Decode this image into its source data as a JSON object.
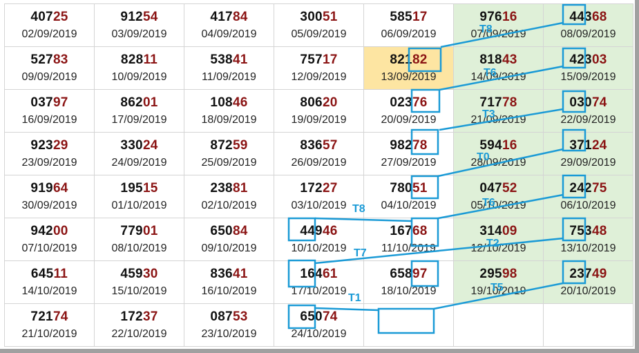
{
  "colors": {
    "accent": "#1a9ad6",
    "highlight_cell": "#fde5a2",
    "weekend_column": "#dff0d8",
    "tail_digits": "#8b1414"
  },
  "grid": {
    "rows": [
      [
        {
          "head": "407",
          "tail": "25",
          "date": "02/09/2019"
        },
        {
          "head": "912",
          "tail": "54",
          "date": "03/09/2019"
        },
        {
          "head": "417",
          "tail": "84",
          "date": "04/09/2019"
        },
        {
          "head": "300",
          "tail": "51",
          "date": "05/09/2019"
        },
        {
          "head": "585",
          "tail": "17",
          "date": "06/09/2019"
        },
        {
          "head": "976",
          "tail": "16",
          "date": "07/09/2019"
        },
        {
          "head": "443",
          "tail": "68",
          "date": "08/09/2019"
        }
      ],
      [
        {
          "head": "527",
          "tail": "83",
          "date": "09/09/2019"
        },
        {
          "head": "828",
          "tail": "11",
          "date": "10/09/2019"
        },
        {
          "head": "538",
          "tail": "41",
          "date": "11/09/2019"
        },
        {
          "head": "757",
          "tail": "17",
          "date": "12/09/2019"
        },
        {
          "head": "821",
          "tail": "82",
          "date": "13/09/2019"
        },
        {
          "head": "818",
          "tail": "43",
          "date": "14/09/2019"
        },
        {
          "head": "423",
          "tail": "03",
          "date": "15/09/2019"
        }
      ],
      [
        {
          "head": "037",
          "tail": "97",
          "date": "16/09/2019"
        },
        {
          "head": "862",
          "tail": "01",
          "date": "17/09/2019"
        },
        {
          "head": "108",
          "tail": "46",
          "date": "18/09/2019"
        },
        {
          "head": "806",
          "tail": "20",
          "date": "19/09/2019"
        },
        {
          "head": "023",
          "tail": "76",
          "date": "20/09/2019"
        },
        {
          "head": "717",
          "tail": "78",
          "date": "21/09/2019"
        },
        {
          "head": "030",
          "tail": "74",
          "date": "22/09/2019"
        }
      ],
      [
        {
          "head": "923",
          "tail": "29",
          "date": "23/09/2019"
        },
        {
          "head": "330",
          "tail": "24",
          "date": "24/09/2019"
        },
        {
          "head": "872",
          "tail": "59",
          "date": "25/09/2019"
        },
        {
          "head": "836",
          "tail": "57",
          "date": "26/09/2019"
        },
        {
          "head": "982",
          "tail": "78",
          "date": "27/09/2019"
        },
        {
          "head": "594",
          "tail": "16",
          "date": "28/09/2019"
        },
        {
          "head": "371",
          "tail": "24",
          "date": "29/09/2019"
        }
      ],
      [
        {
          "head": "919",
          "tail": "64",
          "date": "30/09/2019"
        },
        {
          "head": "195",
          "tail": "15",
          "date": "01/10/2019"
        },
        {
          "head": "238",
          "tail": "81",
          "date": "02/10/2019"
        },
        {
          "head": "172",
          "tail": "27",
          "date": "03/10/2019"
        },
        {
          "head": "780",
          "tail": "51",
          "date": "04/10/2019"
        },
        {
          "head": "047",
          "tail": "52",
          "date": "05/10/2019"
        },
        {
          "head": "242",
          "tail": "75",
          "date": "06/10/2019"
        }
      ],
      [
        {
          "head": "942",
          "tail": "00",
          "date": "07/10/2019"
        },
        {
          "head": "779",
          "tail": "01",
          "date": "08/10/2019"
        },
        {
          "head": "650",
          "tail": "84",
          "date": "09/10/2019"
        },
        {
          "head": "449",
          "tail": "46",
          "date": "10/10/2019"
        },
        {
          "head": "167",
          "tail": "68",
          "date": "11/10/2019"
        },
        {
          "head": "314",
          "tail": "09",
          "date": "12/10/2019"
        },
        {
          "head": "753",
          "tail": "48",
          "date": "13/10/2019"
        }
      ],
      [
        {
          "head": "645",
          "tail": "11",
          "date": "14/10/2019"
        },
        {
          "head": "459",
          "tail": "30",
          "date": "15/10/2019"
        },
        {
          "head": "836",
          "tail": "41",
          "date": "16/10/2019"
        },
        {
          "head": "164",
          "tail": "61",
          "date": "17/10/2019"
        },
        {
          "head": "658",
          "tail": "97",
          "date": "18/10/2019"
        },
        {
          "head": "295",
          "tail": "98",
          "date": "19/10/2019"
        },
        {
          "head": "237",
          "tail": "49",
          "date": "20/10/2019"
        }
      ],
      [
        {
          "head": "721",
          "tail": "74",
          "date": "21/10/2019"
        },
        {
          "head": "172",
          "tail": "37",
          "date": "22/10/2019"
        },
        {
          "head": "087",
          "tail": "53",
          "date": "23/10/2019"
        },
        {
          "head": "650",
          "tail": "74",
          "date": "24/10/2019"
        },
        null,
        null,
        null
      ]
    ]
  },
  "annotations": {
    "labels": [
      "T8",
      "T6",
      "T3",
      "T0",
      "T6",
      "T8",
      "T2",
      "T7",
      "T5",
      "T1"
    ]
  }
}
